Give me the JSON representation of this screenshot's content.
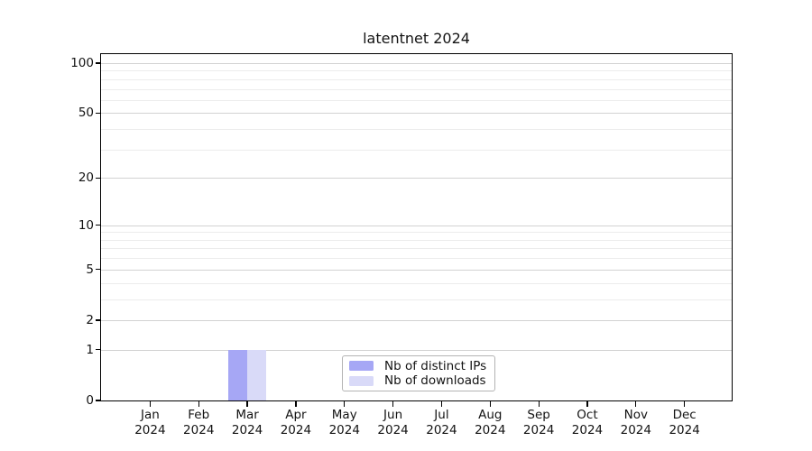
{
  "chart_data": {
    "type": "bar",
    "title": "latentnet 2024",
    "xlabel": "",
    "ylabel": "",
    "categories": [
      "Jan",
      "Feb",
      "Mar",
      "Apr",
      "May",
      "Jun",
      "Jul",
      "Aug",
      "Sep",
      "Oct",
      "Nov",
      "Dec"
    ],
    "year_label": "2024",
    "series": [
      {
        "name": "Nb of distinct IPs",
        "color": "#a6a7f5",
        "values": [
          0,
          0,
          1,
          0,
          0,
          0,
          0,
          0,
          0,
          0,
          0,
          0
        ]
      },
      {
        "name": "Nb of downloads",
        "color": "#d9daf8",
        "values": [
          0,
          0,
          1,
          0,
          0,
          0,
          0,
          0,
          0,
          0,
          0,
          0
        ]
      }
    ],
    "y_axis": {
      "scale": "log10(1+v)",
      "major_ticks": [
        100,
        50,
        20,
        10,
        5,
        2,
        1,
        0
      ],
      "minor_gridlines": [
        3,
        4,
        6,
        7,
        8,
        9,
        30,
        40,
        60,
        70,
        80,
        90
      ],
      "ylim": [
        0,
        114
      ]
    },
    "legend_position": "lower center",
    "grid": "horizontal",
    "style": {
      "background": "#ffffff",
      "spine_color": "#000000",
      "text_color": "#131313",
      "grid_major_color": "#d2d2d2",
      "grid_minor_color": "#ececec",
      "legend_border_color": "#b3b3b3"
    }
  }
}
